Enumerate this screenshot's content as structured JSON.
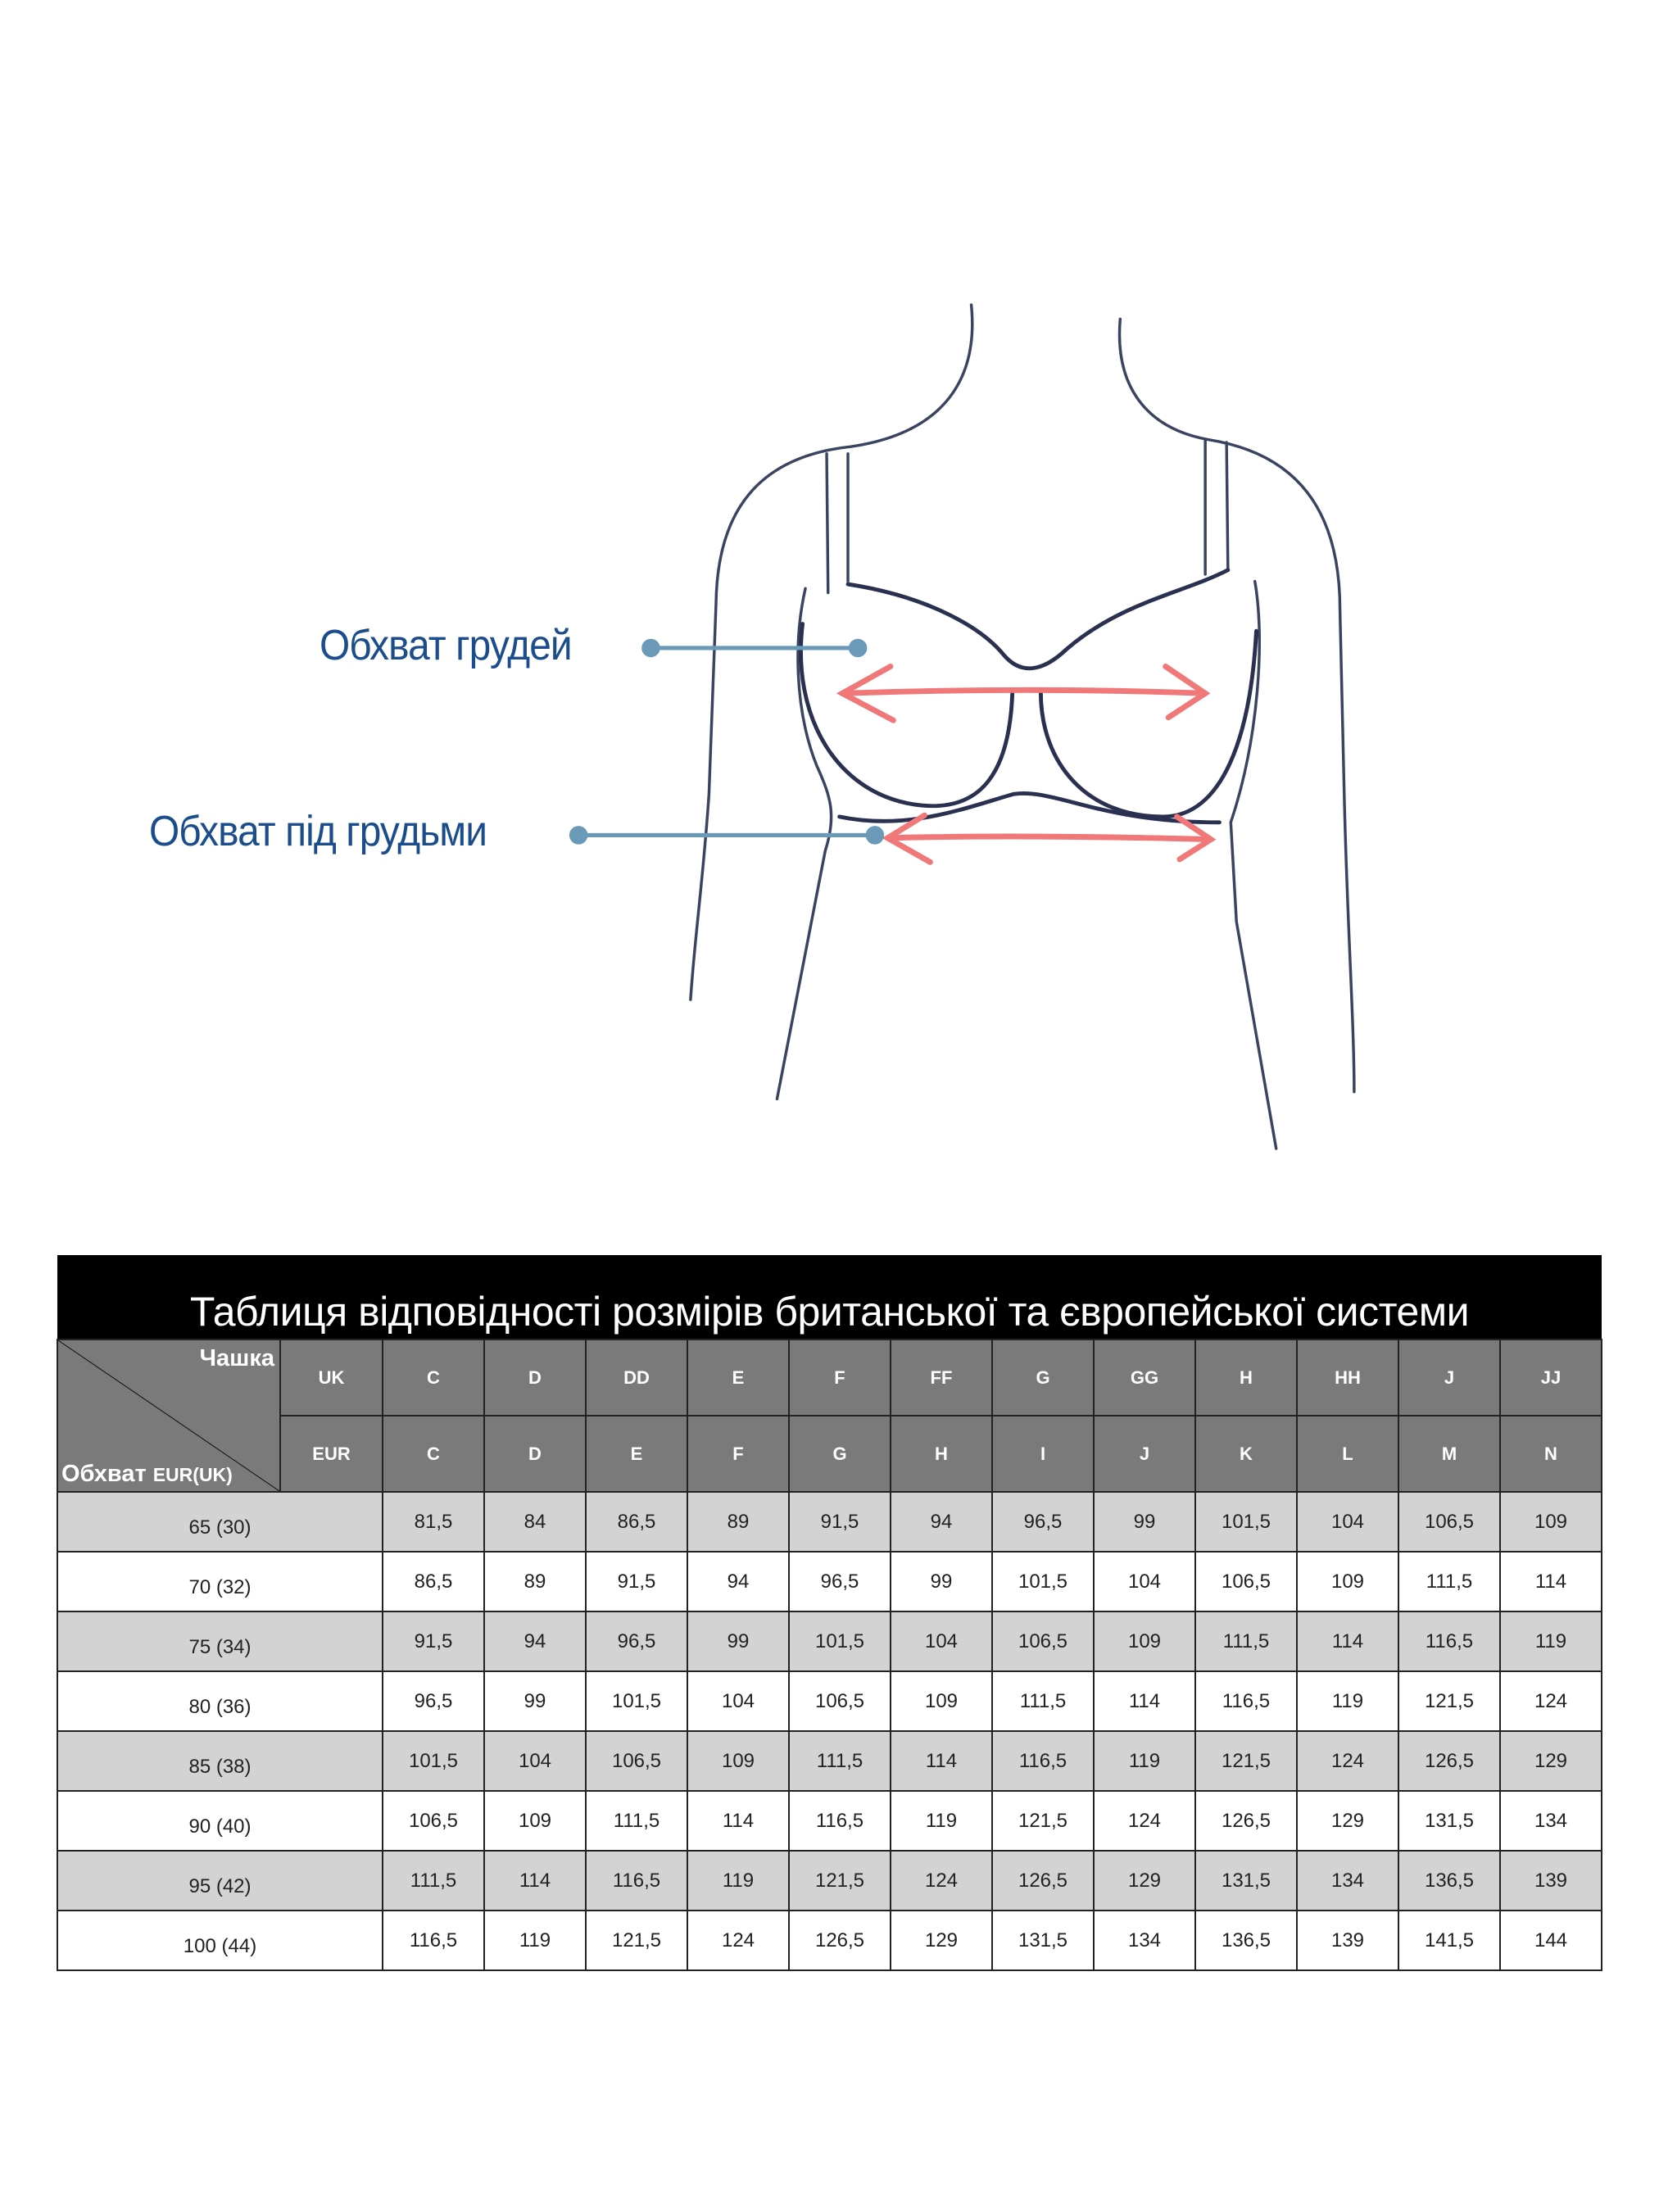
{
  "illustration": {
    "labels": {
      "bust": "Обхват грудей",
      "underbust": "Обхват під грудьми"
    },
    "colors": {
      "label_text": "#1b4d8c",
      "pointer_line": "#6a9ab8",
      "arrow": "#f07878",
      "body_outline": "#3a4460"
    }
  },
  "size_table": {
    "title": "Таблиця відповідності розмірів британської та європейської системи",
    "corner_cup_label": "Чашка",
    "corner_girth_label": "Обхват",
    "corner_girth_suffix": "EUR(UK)",
    "uk_label": "UK",
    "eur_label": "EUR",
    "uk_cups": [
      "C",
      "D",
      "DD",
      "E",
      "F",
      "FF",
      "G",
      "GG",
      "H",
      "HH",
      "J",
      "JJ"
    ],
    "eur_cups": [
      "C",
      "D",
      "E",
      "F",
      "G",
      "H",
      "I",
      "J",
      "K",
      "L",
      "M",
      "N"
    ],
    "rows": [
      {
        "girth": "65 (30)",
        "values": [
          "81,5",
          "84",
          "86,5",
          "89",
          "91,5",
          "94",
          "96,5",
          "99",
          "101,5",
          "104",
          "106,5",
          "109"
        ]
      },
      {
        "girth": "70 (32)",
        "values": [
          "86,5",
          "89",
          "91,5",
          "94",
          "96,5",
          "99",
          "101,5",
          "104",
          "106,5",
          "109",
          "111,5",
          "114"
        ]
      },
      {
        "girth": "75 (34)",
        "values": [
          "91,5",
          "94",
          "96,5",
          "99",
          "101,5",
          "104",
          "106,5",
          "109",
          "111,5",
          "114",
          "116,5",
          "119"
        ]
      },
      {
        "girth": "80 (36)",
        "values": [
          "96,5",
          "99",
          "101,5",
          "104",
          "106,5",
          "109",
          "111,5",
          "114",
          "116,5",
          "119",
          "121,5",
          "124"
        ]
      },
      {
        "girth": "85 (38)",
        "values": [
          "101,5",
          "104",
          "106,5",
          "109",
          "111,5",
          "114",
          "116,5",
          "119",
          "121,5",
          "124",
          "126,5",
          "129"
        ]
      },
      {
        "girth": "90 (40)",
        "values": [
          "106,5",
          "109",
          "111,5",
          "114",
          "116,5",
          "119",
          "121,5",
          "124",
          "126,5",
          "129",
          "131,5",
          "134"
        ]
      },
      {
        "girth": "95 (42)",
        "values": [
          "111,5",
          "114",
          "116,5",
          "119",
          "121,5",
          "124",
          "126,5",
          "129",
          "131,5",
          "134",
          "136,5",
          "139"
        ]
      },
      {
        "girth": "100 (44)",
        "values": [
          "116,5",
          "119",
          "121,5",
          "124",
          "126,5",
          "129",
          "131,5",
          "134",
          "136,5",
          "139",
          "141,5",
          "144"
        ]
      }
    ]
  }
}
